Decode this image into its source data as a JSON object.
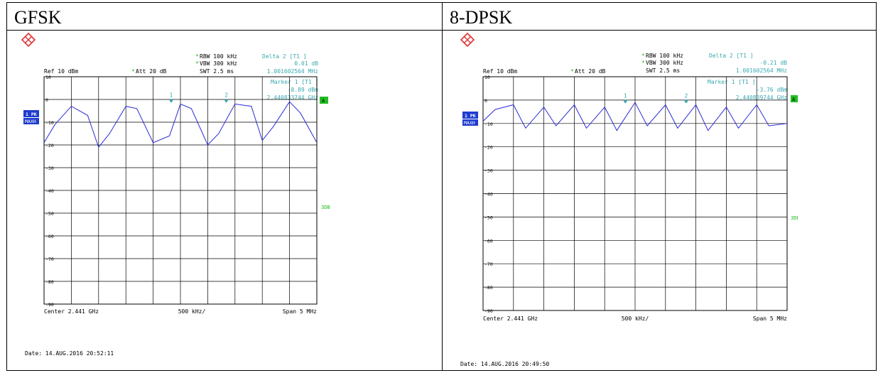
{
  "panels": [
    {
      "heading": "GFSK",
      "header_left": {
        "ref": "Ref  10 dBm",
        "att_star": "*",
        "att": "Att  20 dB"
      },
      "header_mid": {
        "rbw_star": "*",
        "rbw": "RBW 100 kHz",
        "vbw_star": "*",
        "vbw": "VBW 300 kHz",
        "swt": "SWT 2.5 ms"
      },
      "delta": {
        "label": "Delta 2 [T1 ]",
        "value": "0.01 dB",
        "freq": "1.001602564 MHz"
      },
      "marker": {
        "label": "Marker 1 [T1 ]",
        "value": "-8.89 dBm",
        "freq": "2.440833744 GHz"
      },
      "badge_pk": "1 PK",
      "badge_max": "MAXH",
      "badge_a": "A",
      "label_3db": "3DB",
      "footer_center": "Center  2.441 GHz",
      "footer_div": "500 kHz/",
      "footer_span": "Span  5 MHz",
      "date": "Date: 14.AUG.2016  20:52:11",
      "colors": {
        "trace": "#2b2bd6",
        "annot": "#39a9b0",
        "green": "#22bb22",
        "blue_badge": "#1e3ccf"
      },
      "chart_data": {
        "type": "line",
        "xlabel": "",
        "ylabel": "",
        "x_range": [
          2.4385,
          2.4435
        ],
        "ylim": [
          -90,
          10
        ],
        "yticks": [
          10,
          0,
          -10,
          -20,
          -30,
          -40,
          -50,
          -60,
          -70,
          -80,
          -90
        ],
        "grid": true,
        "series": [
          {
            "x": [
              2.4385,
              2.4387,
              2.439,
              2.4393,
              2.4395,
              2.4397,
              2.44,
              2.4402,
              2.4405,
              2.4408,
              2.441,
              2.4412,
              2.4415,
              2.4417,
              2.442,
              2.4423,
              2.4425,
              2.4427,
              2.443,
              2.4432,
              2.4435
            ],
            "values": [
              -19,
              -11,
              -3,
              -7,
              -21,
              -15,
              -3,
              -4,
              -19,
              -16,
              -2,
              -4,
              -20,
              -15,
              -2,
              -3,
              -18,
              -12,
              -1,
              -6,
              -19
            ]
          }
        ],
        "markers": [
          {
            "label": "1",
            "x": 2.44083,
            "y": -0.5
          },
          {
            "label": "2",
            "x": 2.44184,
            "y": -0.5
          }
        ]
      }
    },
    {
      "heading": "8-DPSK",
      "header_left": {
        "ref": "Ref  10 dBm",
        "att_star": "*",
        "att": "Att  20 dB"
      },
      "header_mid": {
        "rbw_star": "*",
        "rbw": "RBW 100 kHz",
        "vbw_star": "*",
        "vbw": "VBW 300 kHz",
        "swt": "SWT 2.5 ms"
      },
      "delta": {
        "label": "Delta 2 [T1 ]",
        "value": "-0.21 dB",
        "freq": "1.001602564 MHz"
      },
      "marker": {
        "label": "Marker 1 [T1 ]",
        "value": "-3.76 dBm",
        "freq": "2.440839744 GHz"
      },
      "badge_pk": "1 PK",
      "badge_max": "MAXH",
      "badge_a": "A",
      "label_3db": "3DB",
      "footer_center": "Center  2.441 GHz",
      "footer_div": "500 kHz/",
      "footer_span": "Span  5 MHz",
      "date": "Date: 14.AUG.2016  20:49:50",
      "colors": {
        "trace": "#2b2bd6",
        "annot": "#39a9b0",
        "green": "#22bb22",
        "blue_badge": "#1e3ccf"
      },
      "chart_data": {
        "type": "line",
        "xlabel": "",
        "ylabel": "",
        "x_range": [
          2.4385,
          2.4435
        ],
        "ylim": [
          -90,
          10
        ],
        "yticks": [
          10,
          0,
          -10,
          -20,
          -30,
          -40,
          -50,
          -60,
          -70,
          -80,
          -90
        ],
        "grid": true,
        "series": [
          {
            "x": [
              2.4385,
              2.4387,
              2.439,
              2.4392,
              2.4395,
              2.4397,
              2.44,
              2.4402,
              2.4405,
              2.4407,
              2.441,
              2.4412,
              2.4415,
              2.4417,
              2.442,
              2.4422,
              2.4425,
              2.4427,
              2.443,
              2.4432,
              2.4435
            ],
            "values": [
              -9,
              -4,
              -2,
              -12,
              -3,
              -11,
              -2,
              -12,
              -3,
              -13,
              -1,
              -11,
              -2,
              -12,
              -2,
              -13,
              -3,
              -12,
              -2,
              -11,
              -10
            ]
          }
        ],
        "markers": [
          {
            "label": "1",
            "x": 2.44084,
            "y": -0.5
          },
          {
            "label": "2",
            "x": 2.44184,
            "y": -0.5
          }
        ]
      }
    }
  ]
}
